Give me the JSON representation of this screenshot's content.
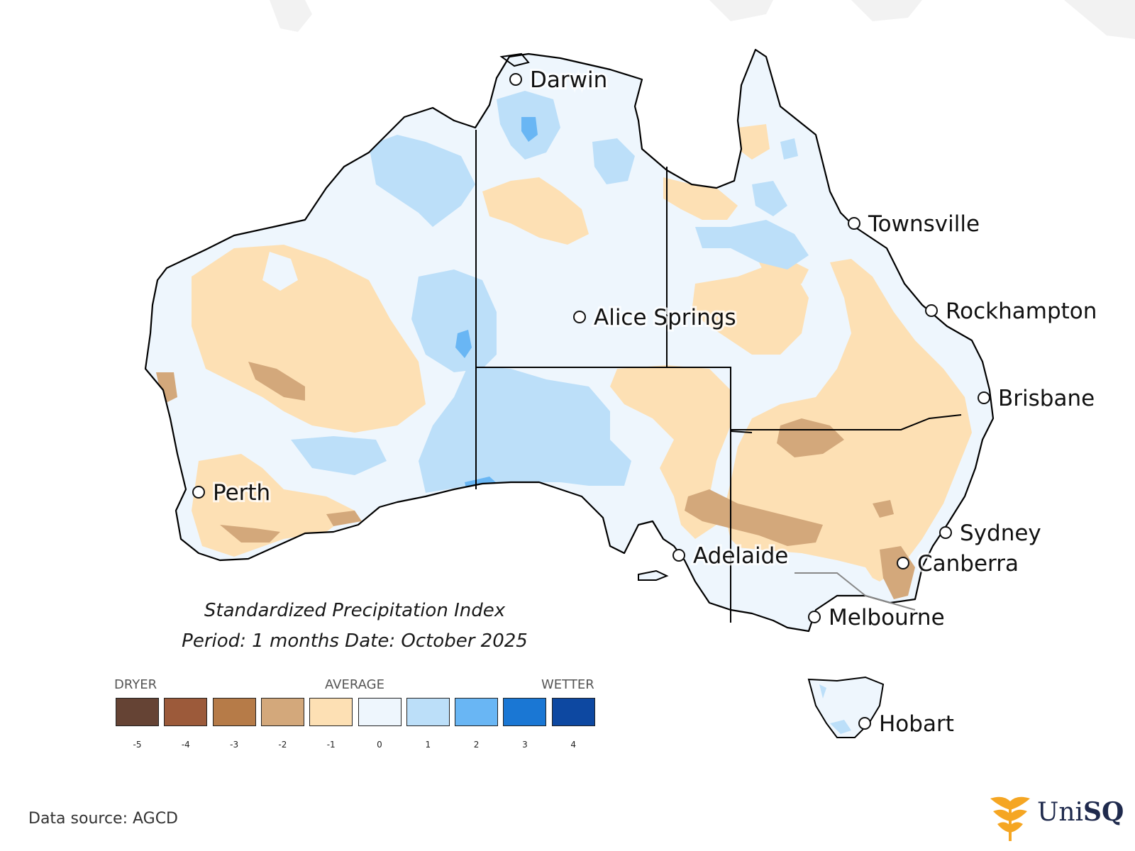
{
  "map": {
    "title": "Standardized Precipitation Index",
    "subtitle": "Period: 1 months Date: October 2025",
    "cities": [
      {
        "name": "Darwin"
      },
      {
        "name": "Townsville"
      },
      {
        "name": "Alice Springs"
      },
      {
        "name": "Rockhampton"
      },
      {
        "name": "Brisbane"
      },
      {
        "name": "Perth"
      },
      {
        "name": "Sydney"
      },
      {
        "name": "Canberra"
      },
      {
        "name": "Adelaide"
      },
      {
        "name": "Melbourne"
      },
      {
        "name": "Hobart"
      }
    ]
  },
  "legend": {
    "dryer_label": "DRYER",
    "average_label": "AVERAGE",
    "wetter_label": "WETTER",
    "classes": [
      {
        "value": "-5",
        "color": "#654334"
      },
      {
        "value": "-4",
        "color": "#9c5a3a"
      },
      {
        "value": "-3",
        "color": "#b67b48"
      },
      {
        "value": "-2",
        "color": "#d3a87b"
      },
      {
        "value": "-1",
        "color": "#fde0b4"
      },
      {
        "value": "0",
        "color": "#eef6fd"
      },
      {
        "value": "1",
        "color": "#bcdff9"
      },
      {
        "value": "2",
        "color": "#69b6f4"
      },
      {
        "value": "3",
        "color": "#1a77d4"
      },
      {
        "value": "4",
        "color": "#0d48a1"
      }
    ]
  },
  "footer": {
    "source": "Data source: AGCD",
    "logo_prefix": "Uni",
    "logo_suffix": "SQ"
  }
}
